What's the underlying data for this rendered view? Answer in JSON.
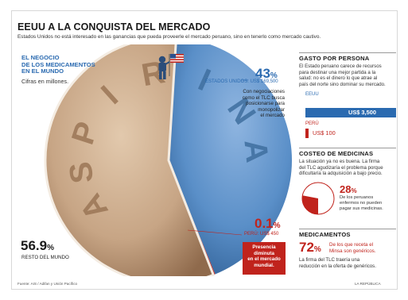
{
  "header": {
    "title": "EEUU A LA CONQUISTA DEL MERCADO",
    "subtitle": "Estados Unidos no está interesado en las ganancias que pueda proveerle el mercado peruano, sino en tenerlo como mercado cautivo."
  },
  "left_panel": {
    "heading_lines": [
      "EL NEGOCIO",
      "DE LOS MEDICAMENTOS",
      "EN EL MUNDO"
    ],
    "unit_note": "Cifras en millones."
  },
  "pill_text": "ASPIRINA",
  "chart_data": [
    {
      "type": "pie",
      "title": "EL NEGOCIO DE LOS MEDICAMENTOS EN EL MUNDO",
      "unit": "Cifras en millones.",
      "slices": [
        {
          "label": "ESTADOS UNIDOS",
          "percent": 43,
          "value_label": "US$ 169,500",
          "color": "#5a8fc8"
        },
        {
          "label": "PERÚ",
          "percent": 0.1,
          "value_label": "US$ 450",
          "color": "#c0231c"
        },
        {
          "label": "RESTO DEL MUNDO",
          "percent": 56.9,
          "value_label": "",
          "color": "#c9a989"
        }
      ]
    },
    {
      "type": "bar",
      "title": "GASTO POR PERSONA",
      "categories": [
        "EEUU",
        "PERÚ"
      ],
      "values": [
        3500,
        100
      ],
      "value_labels": [
        "US$ 3,500",
        "US$ 100"
      ],
      "colors": [
        "#2a6ab0",
        "#c0231c"
      ],
      "ylim": [
        0,
        3500
      ]
    },
    {
      "type": "pie",
      "title": "COSTEO DE MEDICINAS",
      "slices": [
        {
          "label": "De los peruanos enfermos no pueden pagar sus medicinas.",
          "percent": 28,
          "color": "#c0231c"
        },
        {
          "label": "",
          "percent": 72,
          "color": "#ffffff"
        }
      ]
    }
  ],
  "annotations": {
    "usa_pct_big": "43",
    "pct_sign": "%",
    "usa_label": "ESTADOS UNIDOS: US$ 169,500",
    "usa_note_lines": [
      "Con negociaciones",
      "como el TLC busca",
      "posicionarse para",
      "monopolizar",
      "el mercado"
    ],
    "peru_pct_big": "0.1",
    "peru_label": "PERÚ: US$ 450",
    "peru_box_lines": [
      "Presencia",
      "diminuta",
      "en el mercado",
      "mundial."
    ],
    "rest_pct_big": "56.9",
    "rest_label": "RESTO DEL MUNDO"
  },
  "right_panel": {
    "gasto": {
      "title": "GASTO POR PERSONA",
      "text_lines": [
        "El Estado peruano carece de recursos",
        "para destinar una mejor partida a la",
        "salud: no es el dinero lo que atrae al",
        "país del norte sino dominar su mercado."
      ],
      "usa_label": "EEUU",
      "usa_value": "US$ 3,500",
      "peru_label": "PERÚ",
      "peru_value": "US$ 100"
    },
    "costeo": {
      "title": "COSTEO DE MEDICINAS",
      "text_lines": [
        "La situación ya no es buena. La firma",
        "del TLC agudizaría el problema porque",
        "dificultaría la adquisición a bajo precio."
      ],
      "pct_big": "28",
      "pct_sign": "%",
      "note_lines": [
        "De los peruanos",
        "enfermos no pueden",
        "pagar sus medicinas."
      ]
    },
    "medicamentos": {
      "title": "MEDICAMENTOS",
      "pct_big": "72",
      "pct_sign": "%",
      "highlight_lines": [
        "De los que receta el",
        "Minsa son genéricos."
      ],
      "text_lines": [
        "La firma del TLC traería una",
        "reducción en la oferta de genéricos."
      ]
    }
  },
  "footer": {
    "source": "Fuente: AIS / Adifan y Unión Pacífico",
    "credit": "LA REPÚBLICA"
  }
}
